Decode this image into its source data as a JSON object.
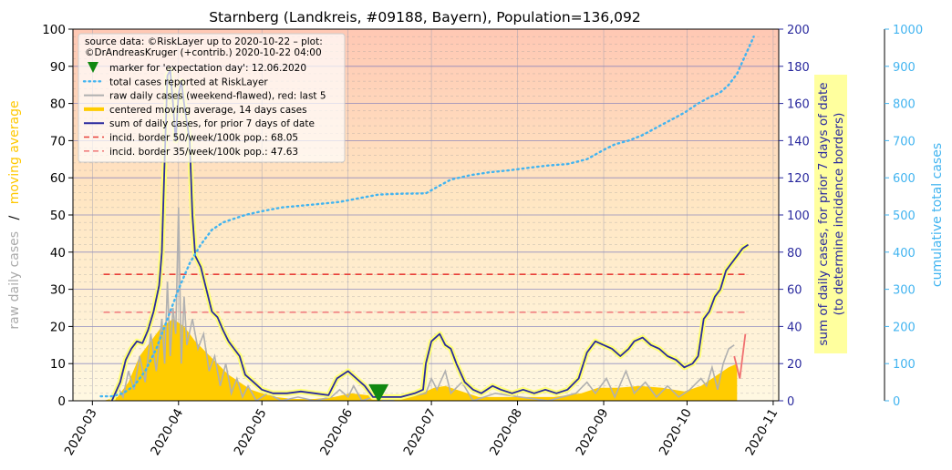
{
  "chart_data": {
    "type": "line",
    "title": "Starnberg (Landkreis, #09188, Bayern), Population=136,092",
    "ylabel_left_parts": [
      "raw daily cases",
      "/",
      "moving average"
    ],
    "ylabel_right1_lines": [
      "sum of daily cases, for prior 7 days of date",
      "(to determine incidence borders)"
    ],
    "ylabel_right2": "cumulative total cases",
    "xlim": [
      "2020-02-23",
      "2020-11-03"
    ],
    "ylim_left": [
      0,
      100
    ],
    "ylim_right1": [
      0,
      200
    ],
    "ylim_right2": [
      0,
      1000
    ],
    "x_ticks": [
      "2020-03",
      "2020-04",
      "2020-05",
      "2020-06",
      "2020-07",
      "2020-08",
      "2020-09",
      "2020-10",
      "2020-11"
    ],
    "y_ticks_left": [
      0,
      10,
      20,
      30,
      40,
      50,
      60,
      70,
      80,
      90,
      100
    ],
    "y_ticks_right1": [
      0,
      20,
      40,
      60,
      80,
      100,
      120,
      140,
      160,
      180,
      200
    ],
    "y_ticks_right2": [
      0,
      100,
      200,
      300,
      400,
      500,
      600,
      700,
      800,
      900,
      1000
    ],
    "legend_position": "top-left",
    "legend_header": [
      "source data: ©RiskLayer up to 2020-10-22 – plot:",
      "©DrAndreasKruger (+contrib.) 2020-10-22 04:00"
    ],
    "legend": [
      {
        "label": "marker for 'expectation day': 12.06.2020",
        "style": "marker"
      },
      {
        "label": "total cases reported at RiskLayer",
        "style": "dotted"
      },
      {
        "label": "raw daily cases (weekend-flawed), red: last 5",
        "style": "gray"
      },
      {
        "label": "centered moving average, 14 days cases",
        "style": "gold"
      },
      {
        "label": "sum of daily cases, for prior 7 days of date",
        "style": "navy"
      },
      {
        "label": "incid. border 50/week/100k pop.: 68.05",
        "style": "reddash"
      },
      {
        "label": "incid. border 35/week/100k pop.: 47.63",
        "style": "pinkdash"
      }
    ],
    "expectation_day": {
      "date": "2020-06-12",
      "value": 2
    },
    "incidence_borders": [
      {
        "name": "incid. border 50/week/100k pop.",
        "value": 68.05,
        "color": "#e8403a"
      },
      {
        "name": "incid. border 35/week/100k pop.",
        "value": 47.63,
        "color": "#f08080"
      }
    ],
    "border_line_range": [
      "2020-03-05",
      "2020-10-22"
    ],
    "series": [
      {
        "name": "total cases reported at RiskLayer",
        "axis": "right2",
        "color": "#42b4f0",
        "points": [
          [
            "2020-03-04",
            12
          ],
          [
            "2020-03-08",
            12
          ],
          [
            "2020-03-12",
            20
          ],
          [
            "2020-03-16",
            40
          ],
          [
            "2020-03-20",
            80
          ],
          [
            "2020-03-24",
            140
          ],
          [
            "2020-03-28",
            220
          ],
          [
            "2020-04-01",
            300
          ],
          [
            "2020-04-05",
            370
          ],
          [
            "2020-04-09",
            420
          ],
          [
            "2020-04-13",
            460
          ],
          [
            "2020-04-17",
            480
          ],
          [
            "2020-04-21",
            490
          ],
          [
            "2020-04-25",
            500
          ],
          [
            "2020-05-01",
            510
          ],
          [
            "2020-05-08",
            520
          ],
          [
            "2020-05-15",
            525
          ],
          [
            "2020-05-22",
            530
          ],
          [
            "2020-05-29",
            535
          ],
          [
            "2020-06-05",
            545
          ],
          [
            "2020-06-12",
            555
          ],
          [
            "2020-06-20",
            557
          ],
          [
            "2020-06-29",
            558
          ],
          [
            "2020-07-03",
            575
          ],
          [
            "2020-07-08",
            595
          ],
          [
            "2020-07-15",
            607
          ],
          [
            "2020-07-22",
            615
          ],
          [
            "2020-07-29",
            620
          ],
          [
            "2020-08-05",
            627
          ],
          [
            "2020-08-12",
            633
          ],
          [
            "2020-08-19",
            637
          ],
          [
            "2020-08-26",
            650
          ],
          [
            "2020-09-01",
            675
          ],
          [
            "2020-09-05",
            690
          ],
          [
            "2020-09-10",
            700
          ],
          [
            "2020-09-15",
            715
          ],
          [
            "2020-09-20",
            735
          ],
          [
            "2020-09-25",
            755
          ],
          [
            "2020-09-30",
            775
          ],
          [
            "2020-10-05",
            800
          ],
          [
            "2020-10-10",
            820
          ],
          [
            "2020-10-13",
            830
          ],
          [
            "2020-10-16",
            850
          ],
          [
            "2020-10-19",
            880
          ],
          [
            "2020-10-22",
            930
          ],
          [
            "2020-10-25",
            980
          ]
        ]
      },
      {
        "name": "sum of daily cases, for prior 7 days of date",
        "axis": "right1",
        "color": "#2a2a9e",
        "points": [
          [
            "2020-03-08",
            0
          ],
          [
            "2020-03-11",
            10
          ],
          [
            "2020-03-13",
            22
          ],
          [
            "2020-03-15",
            28
          ],
          [
            "2020-03-17",
            32
          ],
          [
            "2020-03-19",
            31
          ],
          [
            "2020-03-21",
            38
          ],
          [
            "2020-03-23",
            48
          ],
          [
            "2020-03-25",
            62
          ],
          [
            "2020-03-26",
            80
          ],
          [
            "2020-03-27",
            130
          ],
          [
            "2020-03-28",
            175
          ],
          [
            "2020-03-29",
            178
          ],
          [
            "2020-03-30",
            160
          ],
          [
            "2020-03-31",
            140
          ],
          [
            "2020-04-01",
            165
          ],
          [
            "2020-04-02",
            172
          ],
          [
            "2020-04-03",
            160
          ],
          [
            "2020-04-04",
            150
          ],
          [
            "2020-04-05",
            140
          ],
          [
            "2020-04-06",
            100
          ],
          [
            "2020-04-07",
            78
          ],
          [
            "2020-04-09",
            72
          ],
          [
            "2020-04-11",
            60
          ],
          [
            "2020-04-13",
            48
          ],
          [
            "2020-04-15",
            45
          ],
          [
            "2020-04-17",
            38
          ],
          [
            "2020-04-19",
            32
          ],
          [
            "2020-04-21",
            28
          ],
          [
            "2020-04-23",
            24
          ],
          [
            "2020-04-25",
            14
          ],
          [
            "2020-04-28",
            10
          ],
          [
            "2020-05-01",
            6
          ],
          [
            "2020-05-05",
            4
          ],
          [
            "2020-05-10",
            4
          ],
          [
            "2020-05-15",
            5
          ],
          [
            "2020-05-20",
            4
          ],
          [
            "2020-05-25",
            3
          ],
          [
            "2020-05-28",
            12
          ],
          [
            "2020-06-01",
            16
          ],
          [
            "2020-06-04",
            12
          ],
          [
            "2020-06-07",
            8
          ],
          [
            "2020-06-10",
            2
          ],
          [
            "2020-06-15",
            2
          ],
          [
            "2020-06-20",
            2
          ],
          [
            "2020-06-25",
            4
          ],
          [
            "2020-06-28",
            6
          ],
          [
            "2020-06-29",
            20
          ],
          [
            "2020-07-01",
            32
          ],
          [
            "2020-07-04",
            36
          ],
          [
            "2020-07-06",
            30
          ],
          [
            "2020-07-08",
            28
          ],
          [
            "2020-07-10",
            20
          ],
          [
            "2020-07-13",
            10
          ],
          [
            "2020-07-16",
            6
          ],
          [
            "2020-07-19",
            4
          ],
          [
            "2020-07-23",
            8
          ],
          [
            "2020-07-26",
            6
          ],
          [
            "2020-07-30",
            4
          ],
          [
            "2020-08-03",
            6
          ],
          [
            "2020-08-07",
            4
          ],
          [
            "2020-08-11",
            6
          ],
          [
            "2020-08-15",
            4
          ],
          [
            "2020-08-19",
            6
          ],
          [
            "2020-08-23",
            12
          ],
          [
            "2020-08-26",
            26
          ],
          [
            "2020-08-29",
            32
          ],
          [
            "2020-09-01",
            30
          ],
          [
            "2020-09-04",
            28
          ],
          [
            "2020-09-07",
            24
          ],
          [
            "2020-09-10",
            28
          ],
          [
            "2020-09-12",
            32
          ],
          [
            "2020-09-15",
            34
          ],
          [
            "2020-09-18",
            30
          ],
          [
            "2020-09-21",
            28
          ],
          [
            "2020-09-24",
            24
          ],
          [
            "2020-09-27",
            22
          ],
          [
            "2020-09-30",
            18
          ],
          [
            "2020-10-03",
            20
          ],
          [
            "2020-10-05",
            24
          ],
          [
            "2020-10-07",
            44
          ],
          [
            "2020-10-09",
            48
          ],
          [
            "2020-10-11",
            56
          ],
          [
            "2020-10-13",
            60
          ],
          [
            "2020-10-15",
            70
          ],
          [
            "2020-10-17",
            74
          ],
          [
            "2020-10-19",
            78
          ],
          [
            "2020-10-21",
            82
          ],
          [
            "2020-10-23",
            84
          ]
        ]
      },
      {
        "name": "centered moving average, 14 days cases",
        "axis": "left",
        "color": "#ffcc00",
        "points": [
          [
            "2020-03-05",
            0
          ],
          [
            "2020-03-10",
            1
          ],
          [
            "2020-03-14",
            5
          ],
          [
            "2020-03-18",
            12
          ],
          [
            "2020-03-22",
            16
          ],
          [
            "2020-03-26",
            20
          ],
          [
            "2020-03-30",
            22
          ],
          [
            "2020-04-03",
            20
          ],
          [
            "2020-04-07",
            16
          ],
          [
            "2020-04-11",
            13
          ],
          [
            "2020-04-15",
            10
          ],
          [
            "2020-04-19",
            7
          ],
          [
            "2020-04-23",
            5
          ],
          [
            "2020-04-27",
            3
          ],
          [
            "2020-05-01",
            2
          ],
          [
            "2020-05-06",
            1
          ],
          [
            "2020-05-12",
            0.5
          ],
          [
            "2020-05-20",
            0.5
          ],
          [
            "2020-05-27",
            1
          ],
          [
            "2020-06-02",
            2
          ],
          [
            "2020-06-08",
            1.5
          ],
          [
            "2020-06-14",
            1
          ],
          [
            "2020-06-20",
            0.5
          ],
          [
            "2020-06-26",
            1.5
          ],
          [
            "2020-07-02",
            3.5
          ],
          [
            "2020-07-06",
            4
          ],
          [
            "2020-07-12",
            2.5
          ],
          [
            "2020-07-18",
            1
          ],
          [
            "2020-07-26",
            1
          ],
          [
            "2020-08-04",
            1
          ],
          [
            "2020-08-14",
            1
          ],
          [
            "2020-08-24",
            2
          ],
          [
            "2020-08-30",
            3.5
          ],
          [
            "2020-09-06",
            3.5
          ],
          [
            "2020-09-14",
            4
          ],
          [
            "2020-09-22",
            3.5
          ],
          [
            "2020-09-30",
            2.5
          ],
          [
            "2020-10-06",
            4
          ],
          [
            "2020-10-11",
            6.5
          ],
          [
            "2020-10-16",
            9
          ],
          [
            "2020-10-19",
            10
          ]
        ]
      },
      {
        "name": "raw daily cases (weekend-flawed)",
        "axis": "left",
        "color": "#b0b0b0",
        "points": [
          [
            "2020-03-08",
            0
          ],
          [
            "2020-03-10",
            4
          ],
          [
            "2020-03-12",
            1
          ],
          [
            "2020-03-14",
            8
          ],
          [
            "2020-03-16",
            3
          ],
          [
            "2020-03-18",
            12
          ],
          [
            "2020-03-20",
            5
          ],
          [
            "2020-03-22",
            18
          ],
          [
            "2020-03-24",
            8
          ],
          [
            "2020-03-26",
            22
          ],
          [
            "2020-03-27",
            10
          ],
          [
            "2020-03-28",
            32
          ],
          [
            "2020-03-29",
            12
          ],
          [
            "2020-03-30",
            25
          ],
          [
            "2020-03-31",
            18
          ],
          [
            "2020-04-01",
            52
          ],
          [
            "2020-04-02",
            10
          ],
          [
            "2020-04-03",
            28
          ],
          [
            "2020-04-04",
            15
          ],
          [
            "2020-04-06",
            22
          ],
          [
            "2020-04-08",
            14
          ],
          [
            "2020-04-10",
            18
          ],
          [
            "2020-04-12",
            8
          ],
          [
            "2020-04-14",
            12
          ],
          [
            "2020-04-16",
            4
          ],
          [
            "2020-04-18",
            10
          ],
          [
            "2020-04-20",
            2
          ],
          [
            "2020-04-22",
            6
          ],
          [
            "2020-04-24",
            1
          ],
          [
            "2020-04-26",
            4
          ],
          [
            "2020-04-29",
            0
          ],
          [
            "2020-05-03",
            2
          ],
          [
            "2020-05-08",
            0
          ],
          [
            "2020-05-14",
            1
          ],
          [
            "2020-05-20",
            0
          ],
          [
            "2020-05-26",
            1
          ],
          [
            "2020-05-29",
            3
          ],
          [
            "2020-06-01",
            1
          ],
          [
            "2020-06-03",
            4
          ],
          [
            "2020-06-06",
            0
          ],
          [
            "2020-06-10",
            1
          ],
          [
            "2020-06-15",
            0
          ],
          [
            "2020-06-22",
            1
          ],
          [
            "2020-06-29",
            2
          ],
          [
            "2020-07-01",
            6
          ],
          [
            "2020-07-03",
            3
          ],
          [
            "2020-07-06",
            8
          ],
          [
            "2020-07-08",
            2
          ],
          [
            "2020-07-12",
            5
          ],
          [
            "2020-07-16",
            0
          ],
          [
            "2020-07-24",
            2
          ],
          [
            "2020-08-02",
            1
          ],
          [
            "2020-08-12",
            0
          ],
          [
            "2020-08-22",
            2
          ],
          [
            "2020-08-26",
            5
          ],
          [
            "2020-08-29",
            2
          ],
          [
            "2020-09-02",
            6
          ],
          [
            "2020-09-05",
            1
          ],
          [
            "2020-09-09",
            8
          ],
          [
            "2020-09-12",
            2
          ],
          [
            "2020-09-16",
            5
          ],
          [
            "2020-09-20",
            1
          ],
          [
            "2020-09-24",
            4
          ],
          [
            "2020-09-28",
            1
          ],
          [
            "2020-10-02",
            3
          ],
          [
            "2020-10-06",
            6
          ],
          [
            "2020-10-08",
            4
          ],
          [
            "2020-10-10",
            9
          ],
          [
            "2020-10-12",
            3
          ],
          [
            "2020-10-14",
            10
          ],
          [
            "2020-10-16",
            14
          ],
          [
            "2020-10-18",
            15
          ]
        ]
      },
      {
        "name": "raw daily cases, last 5",
        "axis": "left",
        "color": "#f07070",
        "points": [
          [
            "2020-10-18",
            12
          ],
          [
            "2020-10-20",
            6
          ],
          [
            "2020-10-22",
            18
          ]
        ]
      }
    ]
  }
}
